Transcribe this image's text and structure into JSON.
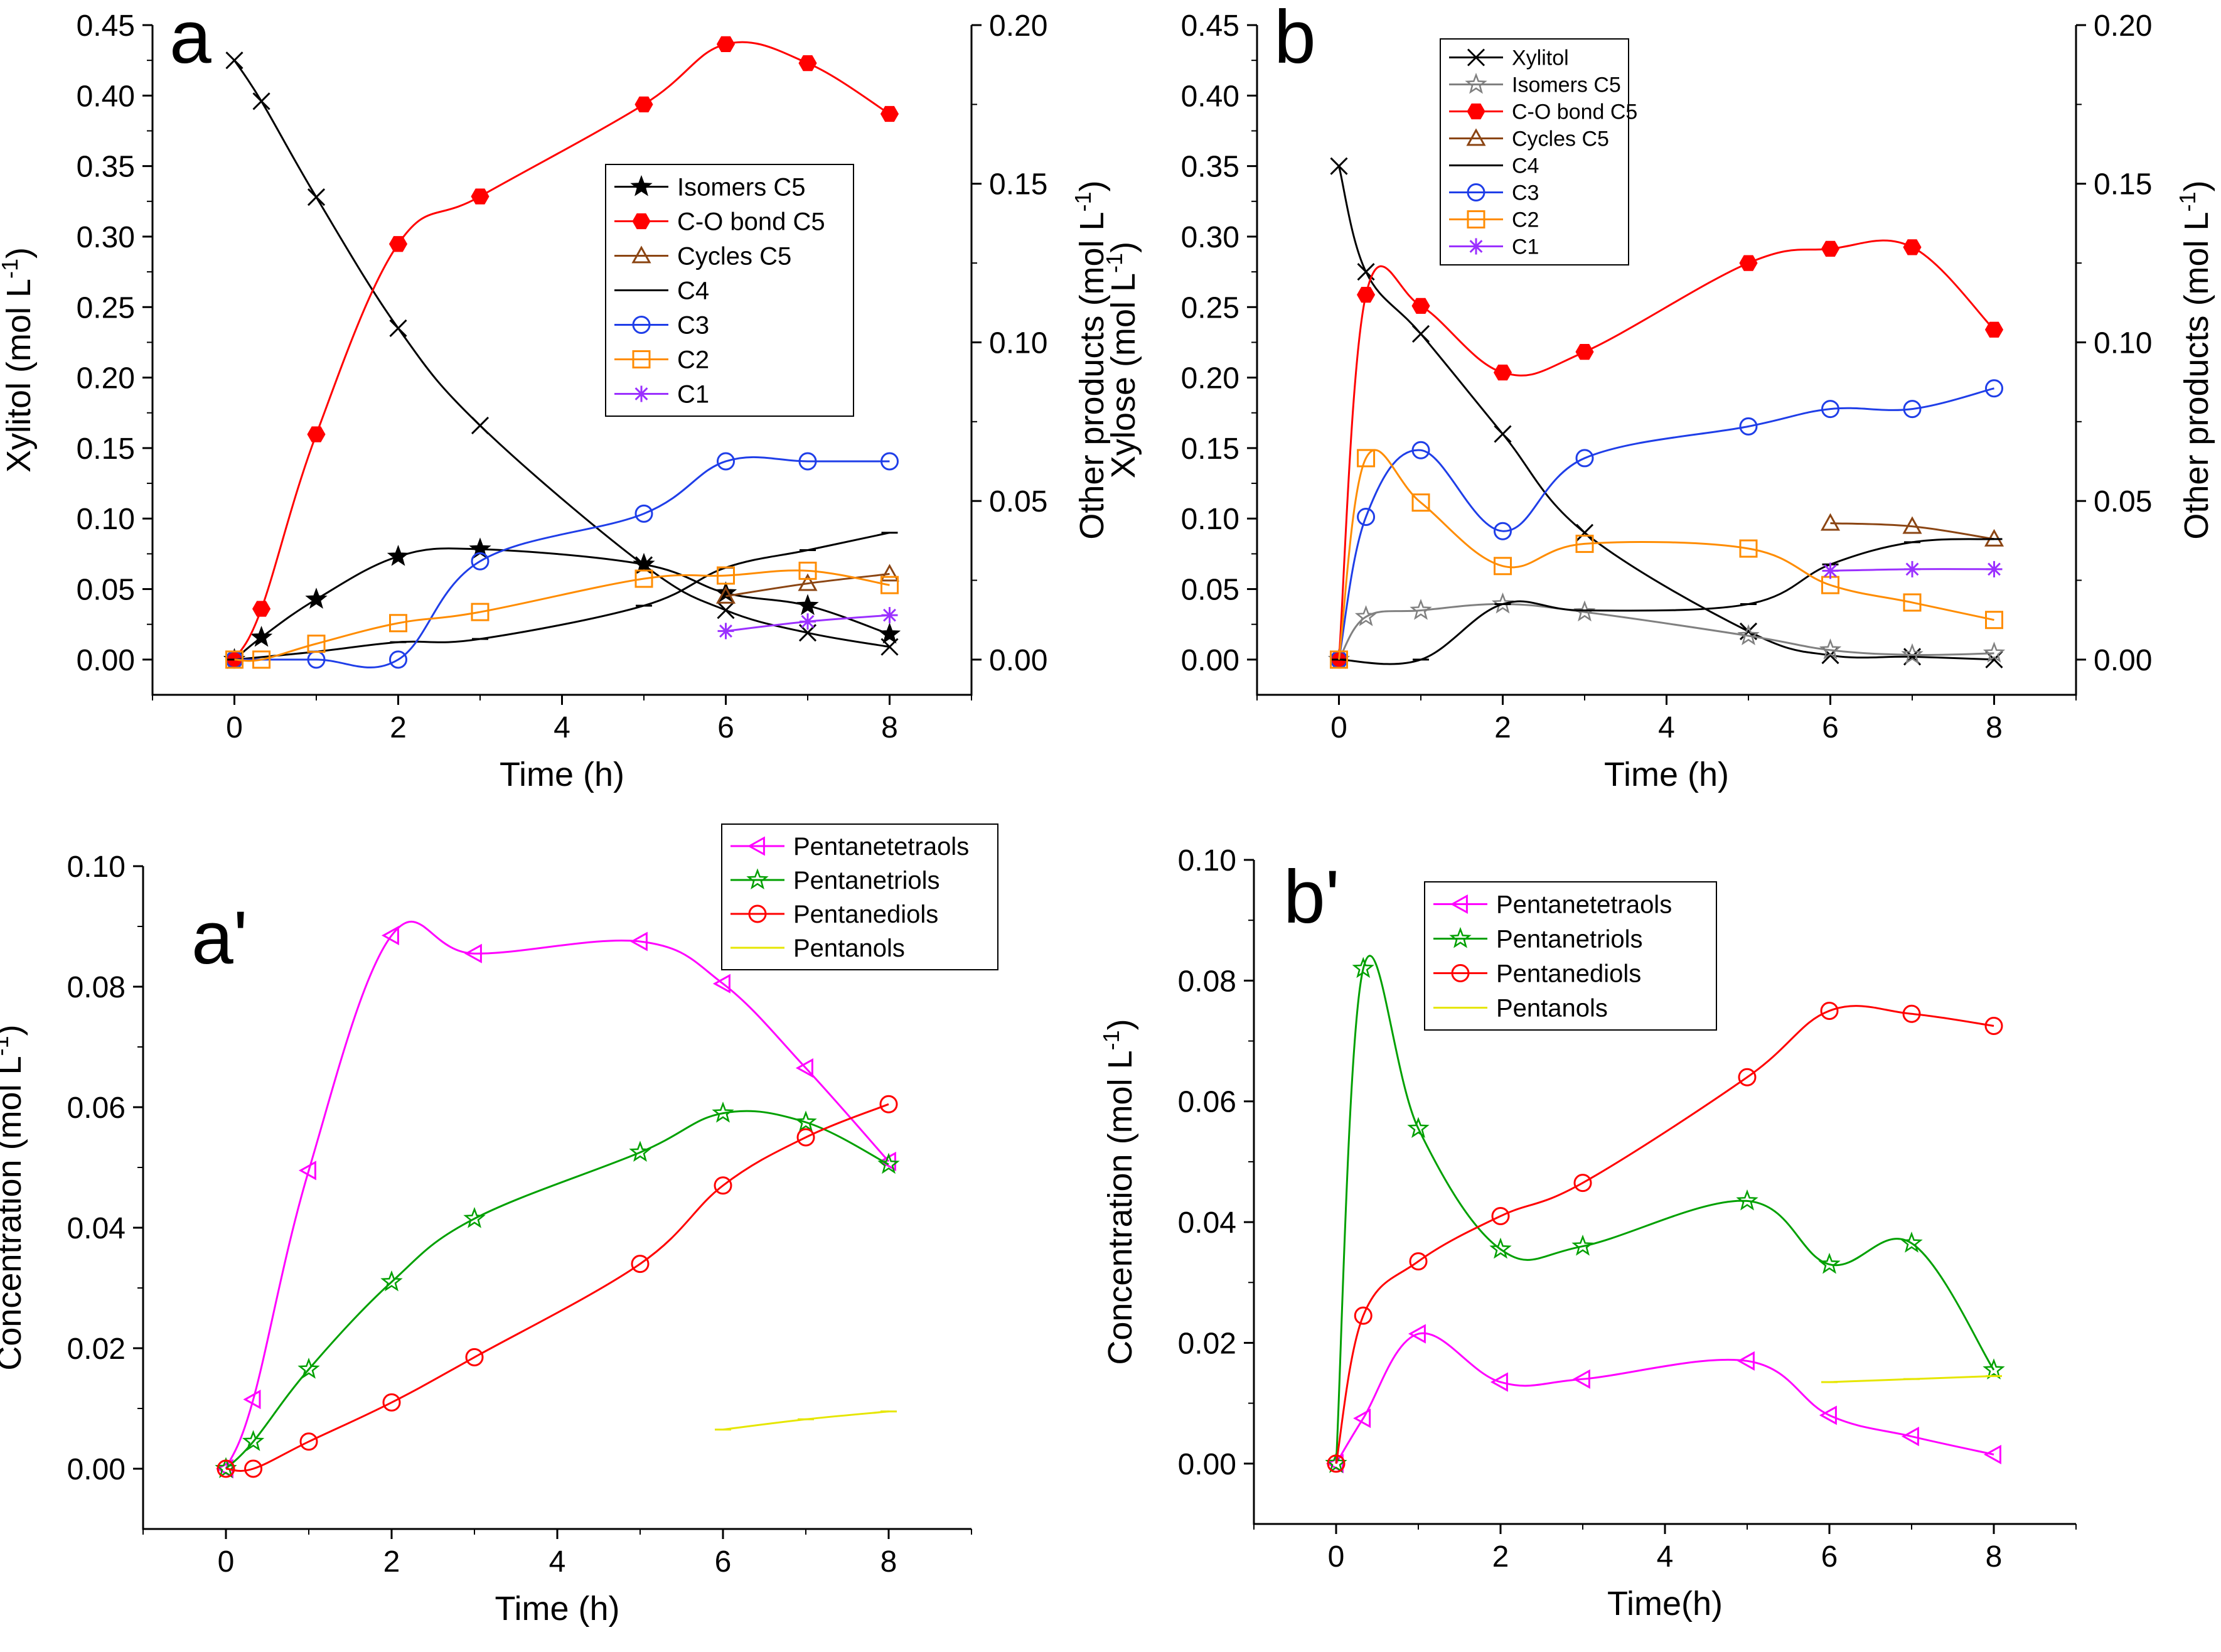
{
  "chart_data": [
    {
      "panel": "a",
      "type": "line",
      "xlabel": "Time (h)",
      "ylabel_left": "Xylitol (mol L-1)",
      "ylabel_right": "Other products (mol L-1)",
      "xlim": [
        -1,
        9
      ],
      "xticks": [
        0,
        2,
        4,
        6,
        8
      ],
      "ylim_left": [
        -0.025,
        0.45
      ],
      "yticks_left": [
        0.0,
        0.05,
        0.1,
        0.15,
        0.2,
        0.25,
        0.3,
        0.35,
        0.4,
        0.45
      ],
      "ylim_right": [
        -0.0111,
        0.2
      ],
      "yticks_right": [
        0.0,
        0.05,
        0.1,
        0.15,
        0.2
      ],
      "legend_position": "center-right",
      "series": [
        {
          "name": "Xylitol",
          "axis": "left",
          "color": "#000000",
          "marker": "x",
          "line": "solid",
          "in_legend": false,
          "x": [
            0,
            0.33,
            1,
            2,
            3,
            5,
            6,
            7,
            8
          ],
          "y": [
            0.425,
            0.396,
            0.328,
            0.235,
            0.166,
            0.067,
            0.035,
            0.019,
            0.009
          ]
        },
        {
          "name": "Isomers C5",
          "axis": "right",
          "color": "#000000",
          "marker": "star",
          "line": "solid",
          "x": [
            0,
            0.33,
            1,
            2,
            3,
            5,
            6,
            7,
            8
          ],
          "y": [
            0.0,
            0.007,
            0.019,
            0.0325,
            0.0348,
            0.03,
            0.021,
            0.017,
            0.008
          ]
        },
        {
          "name": "C-O bond C5",
          "axis": "right",
          "color": "#ff0000",
          "marker": "filled-hexagon",
          "line": "solid",
          "x": [
            0,
            0.33,
            1,
            2,
            3,
            5,
            6,
            7,
            8
          ],
          "y": [
            0.0,
            0.016,
            0.071,
            0.131,
            0.146,
            0.175,
            0.194,
            0.188,
            0.172
          ]
        },
        {
          "name": "Cycles C5",
          "axis": "right",
          "color": "#8b4513",
          "marker": "triangle",
          "line": "solid",
          "x": [
            6,
            7,
            8
          ],
          "y": [
            0.02,
            0.024,
            0.027
          ]
        },
        {
          "name": "C4",
          "axis": "right",
          "color": "#000000",
          "marker": "dash",
          "line": "solid",
          "x": [
            0,
            1,
            2,
            3,
            5,
            6,
            7,
            8
          ],
          "y": [
            0.0,
            0.0025,
            0.0055,
            0.0065,
            0.017,
            0.029,
            0.0345,
            0.04
          ]
        },
        {
          "name": "C3",
          "axis": "right",
          "color": "#1f3ee8",
          "marker": "circle",
          "line": "solid",
          "x": [
            0,
            1,
            2,
            3,
            5,
            6,
            7,
            8
          ],
          "y": [
            0.0,
            0.0,
            0.0,
            0.031,
            0.046,
            0.0625,
            0.0625,
            0.0625
          ]
        },
        {
          "name": "C2",
          "axis": "right",
          "color": "#ff8c00",
          "marker": "square",
          "line": "solid",
          "x": [
            0,
            0.33,
            1,
            2,
            3,
            5,
            6,
            7,
            8
          ],
          "y": [
            0.0,
            0.0,
            0.005,
            0.0115,
            0.015,
            0.0255,
            0.0265,
            0.028,
            0.0235
          ]
        },
        {
          "name": "C1",
          "axis": "right",
          "color": "#9b30ff",
          "marker": "asterisk",
          "line": "solid",
          "x": [
            6,
            7,
            8
          ],
          "y": [
            0.009,
            0.012,
            0.014
          ]
        }
      ]
    },
    {
      "panel": "b",
      "type": "line",
      "xlabel": "Time (h)",
      "ylabel_left": "Xylose (mol L-1)",
      "ylabel_right": "Other products (mol L-1)",
      "xlim": [
        -1,
        9
      ],
      "xticks": [
        0,
        2,
        4,
        6,
        8
      ],
      "ylim_left": [
        -0.025,
        0.45
      ],
      "yticks_left": [
        0.0,
        0.05,
        0.1,
        0.15,
        0.2,
        0.25,
        0.3,
        0.35,
        0.4,
        0.45
      ],
      "ylim_right": [
        -0.0111,
        0.2
      ],
      "yticks_right": [
        0.0,
        0.05,
        0.1,
        0.15,
        0.2
      ],
      "legend_position": "top-center",
      "series": [
        {
          "name": "Xylitol",
          "axis": "left",
          "color": "#000000",
          "marker": "x",
          "line": "solid",
          "x": [
            0,
            0.33,
            1,
            2,
            3,
            5,
            6,
            7,
            8
          ],
          "y": [
            0.35,
            0.275,
            0.231,
            0.16,
            0.09,
            0.02,
            0.003,
            0.002,
            0.0
          ]
        },
        {
          "name": "Isomers C5",
          "axis": "right",
          "color": "#808080",
          "marker": "star",
          "line": "solid",
          "x": [
            0,
            0.33,
            1,
            2,
            3,
            5,
            6,
            7,
            8
          ],
          "y": [
            0.0,
            0.0135,
            0.0155,
            0.0175,
            0.015,
            0.0075,
            0.003,
            0.0015,
            0.002
          ]
        },
        {
          "name": "C-O bond C5",
          "axis": "right",
          "color": "#ff0000",
          "marker": "filled-hexagon",
          "line": "solid",
          "x": [
            0,
            0.33,
            1,
            2,
            3,
            5,
            6,
            7,
            8
          ],
          "y": [
            0.0,
            0.115,
            0.1115,
            0.0905,
            0.097,
            0.125,
            0.1295,
            0.13,
            0.104
          ]
        },
        {
          "name": "Cycles C5",
          "axis": "right",
          "color": "#8b4513",
          "marker": "triangle",
          "line": "solid",
          "x": [
            6,
            7,
            8
          ],
          "y": [
            0.043,
            0.042,
            0.038
          ]
        },
        {
          "name": "C4",
          "axis": "right",
          "color": "#000000",
          "marker": "dash",
          "line": "solid",
          "x": [
            0,
            1,
            2,
            3,
            5,
            6,
            7,
            8
          ],
          "y": [
            0.0,
            0.0,
            0.0175,
            0.0155,
            0.0175,
            0.03,
            0.037,
            0.038
          ]
        },
        {
          "name": "C3",
          "axis": "right",
          "color": "#1f3ee8",
          "marker": "circle",
          "line": "solid",
          "x": [
            0,
            0.33,
            1,
            2,
            3,
            5,
            6,
            7,
            8
          ],
          "y": [
            0.0,
            0.045,
            0.066,
            0.0405,
            0.0635,
            0.0735,
            0.079,
            0.079,
            0.0855
          ]
        },
        {
          "name": "C2",
          "axis": "right",
          "color": "#ff8c00",
          "marker": "square",
          "line": "solid",
          "x": [
            0,
            0.33,
            1,
            2,
            3,
            5,
            6,
            7,
            8
          ],
          "y": [
            0.0,
            0.0635,
            0.0495,
            0.0295,
            0.0365,
            0.035,
            0.0235,
            0.018,
            0.0125
          ]
        },
        {
          "name": "C1",
          "axis": "right",
          "color": "#9b30ff",
          "marker": "asterisk",
          "line": "solid",
          "x": [
            6,
            7,
            8
          ],
          "y": [
            0.028,
            0.0285,
            0.0285
          ]
        }
      ]
    },
    {
      "panel": "a'",
      "type": "line",
      "xlabel": "Time (h)",
      "ylabel": "Concentration (mol L-1)",
      "xlim": [
        -1,
        9
      ],
      "xticks": [
        0,
        2,
        4,
        6,
        8
      ],
      "ylim": [
        -0.01,
        0.1
      ],
      "yticks": [
        0.0,
        0.02,
        0.04,
        0.06,
        0.08,
        0.1
      ],
      "legend_position": "top-right",
      "series": [
        {
          "name": "Pentanetetraols",
          "color": "#ff00ff",
          "marker": "left-triangle",
          "line": "solid",
          "x": [
            0,
            0.33,
            1,
            2,
            3,
            5,
            6,
            7,
            8
          ],
          "y": [
            0.0,
            0.0115,
            0.0495,
            0.0885,
            0.0855,
            0.0875,
            0.0805,
            0.0665,
            0.051
          ]
        },
        {
          "name": "Pentanetriols",
          "color": "#00a000",
          "marker": "star",
          "line": "solid",
          "x": [
            0,
            0.33,
            1,
            2,
            3,
            5,
            6,
            7,
            8
          ],
          "y": [
            0.0,
            0.0045,
            0.0165,
            0.031,
            0.0415,
            0.0525,
            0.059,
            0.0575,
            0.0505
          ]
        },
        {
          "name": "Pentanediols",
          "color": "#ff0000",
          "marker": "circle",
          "line": "solid",
          "x": [
            0,
            0.33,
            1,
            2,
            3,
            5,
            6,
            7,
            8
          ],
          "y": [
            0.0,
            0.0,
            0.0045,
            0.011,
            0.0185,
            0.034,
            0.047,
            0.055,
            0.0605
          ]
        },
        {
          "name": "Pentanols",
          "color": "#e6e600",
          "marker": "dash",
          "line": "solid",
          "x": [
            6,
            7,
            8
          ],
          "y": [
            0.0065,
            0.0082,
            0.0095
          ]
        }
      ]
    },
    {
      "panel": "b'",
      "type": "line",
      "xlabel": "Time(h)",
      "ylabel": "Concentration (mol L-1)",
      "xlim": [
        -1,
        9
      ],
      "xticks": [
        0,
        2,
        4,
        6,
        8
      ],
      "ylim": [
        -0.01,
        0.1
      ],
      "yticks": [
        0.0,
        0.02,
        0.04,
        0.06,
        0.08,
        0.1
      ],
      "legend_position": "top-left",
      "series": [
        {
          "name": "Pentanetetraols",
          "color": "#ff00ff",
          "marker": "left-triangle",
          "line": "solid",
          "x": [
            0,
            0.33,
            1,
            2,
            3,
            5,
            6,
            7,
            8
          ],
          "y": [
            0.0,
            0.0075,
            0.0215,
            0.0135,
            0.014,
            0.017,
            0.008,
            0.0045,
            0.0015
          ]
        },
        {
          "name": "Pentanetriols",
          "color": "#00a000",
          "marker": "star",
          "line": "solid",
          "x": [
            0,
            0.33,
            1,
            2,
            3,
            5,
            6,
            7,
            8
          ],
          "y": [
            0.0,
            0.082,
            0.0555,
            0.0355,
            0.036,
            0.0435,
            0.033,
            0.0365,
            0.0155
          ]
        },
        {
          "name": "Pentanediols",
          "color": "#ff0000",
          "marker": "circle",
          "line": "solid",
          "x": [
            0,
            0.33,
            1,
            2,
            3,
            5,
            6,
            7,
            8
          ],
          "y": [
            0.0,
            0.0245,
            0.0335,
            0.041,
            0.0465,
            0.064,
            0.075,
            0.0745,
            0.0725
          ]
        },
        {
          "name": "Pentanols",
          "color": "#e6e600",
          "marker": "dash",
          "line": "solid",
          "x": [
            6,
            7,
            8
          ],
          "y": [
            0.0135,
            0.014,
            0.0145
          ]
        }
      ]
    }
  ]
}
